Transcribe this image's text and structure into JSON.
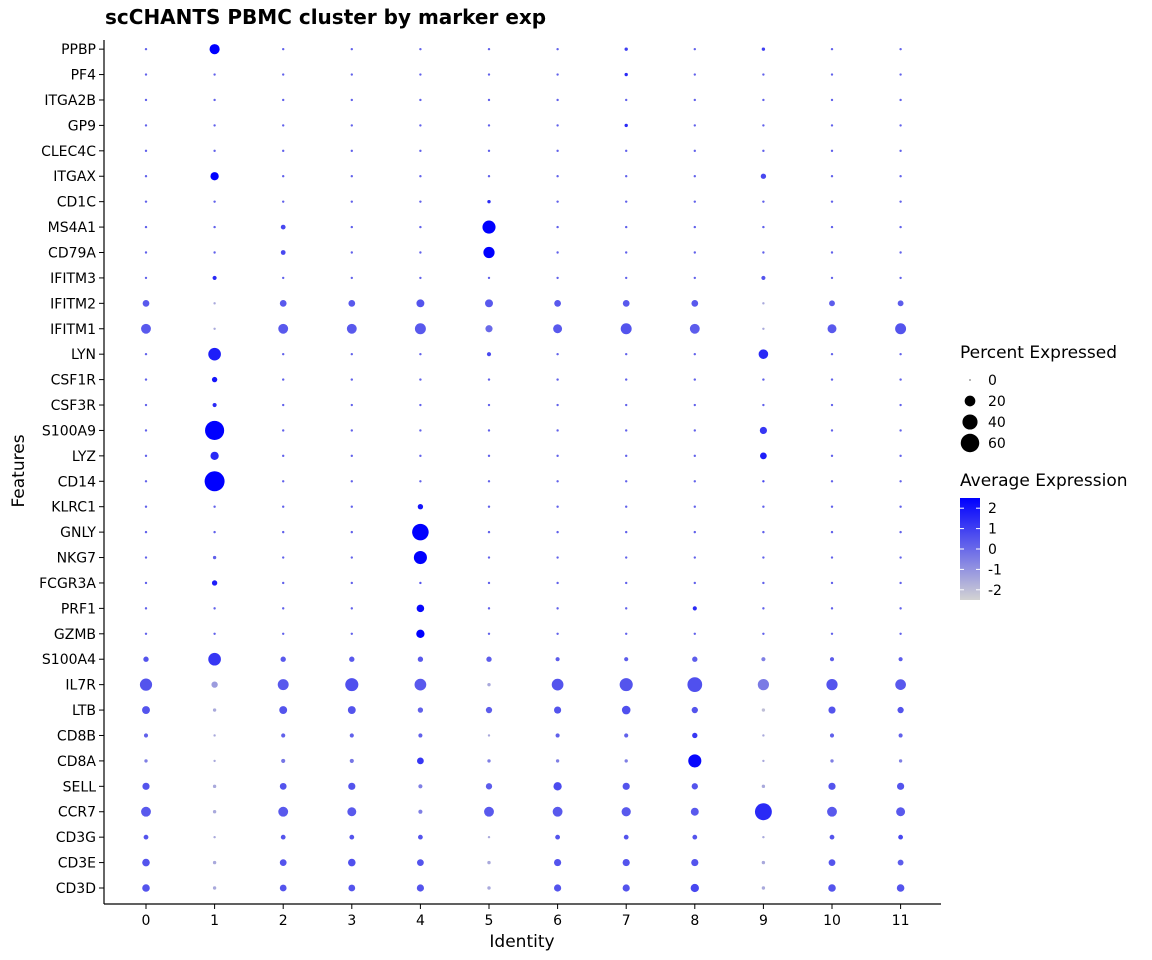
{
  "chart_data": {
    "type": "dotplot",
    "title": "scCHANTS PBMC cluster by marker exp",
    "xlabel": "Identity",
    "ylabel": "Features",
    "categories": [
      "0",
      "1",
      "2",
      "3",
      "4",
      "5",
      "6",
      "7",
      "8",
      "9",
      "10",
      "11"
    ],
    "features": [
      "CD3D",
      "CD3E",
      "CD3G",
      "CCR7",
      "SELL",
      "CD8A",
      "CD8B",
      "LTB",
      "IL7R",
      "S100A4",
      "GZMB",
      "PRF1",
      "FCGR3A",
      "NKG7",
      "GNLY",
      "KLRC1",
      "CD14",
      "LYZ",
      "S100A9",
      "CSF3R",
      "CSF1R",
      "LYN",
      "IFITM1",
      "IFITM2",
      "IFITM3",
      "CD79A",
      "MS4A1",
      "CD1C",
      "ITGAX",
      "CLEC4C",
      "GP9",
      "ITGA2B",
      "PF4",
      "PPBP"
    ],
    "size_legend": {
      "title": "Percent Expressed",
      "breaks": [
        0,
        20,
        40,
        60
      ]
    },
    "color_legend": {
      "title": "Average Expression",
      "breaks": [
        2,
        1,
        0,
        -1,
        -2
      ],
      "low_color": "#d3d3d3",
      "high_color": "#0000ff",
      "range": [
        -2.5,
        2.5
      ]
    },
    "pct_max": 70,
    "grid": false,
    "legend_position": "right",
    "points": [
      {
        "feature": "CD3D",
        "pct": [
          10,
          2,
          8,
          8,
          9,
          2,
          9,
          9,
          12,
          2,
          10,
          10
        ],
        "avg": [
          0.5,
          -1.5,
          0.5,
          0.5,
          0.5,
          -1.5,
          0.5,
          0.5,
          0.8,
          -1.5,
          0.5,
          0.5
        ]
      },
      {
        "feature": "CD3E",
        "pct": [
          10,
          2,
          8,
          10,
          8,
          2,
          9,
          9,
          9,
          2,
          8,
          6
        ],
        "avg": [
          0.5,
          -1.5,
          0.5,
          0.6,
          0.5,
          -1.5,
          0.5,
          0.5,
          0.5,
          -1.5,
          0.5,
          0.3
        ]
      },
      {
        "feature": "CD3G",
        "pct": [
          4,
          1,
          4,
          4,
          4,
          1,
          4,
          4,
          4,
          1,
          4,
          4
        ],
        "avg": [
          0.5,
          -1.5,
          0.5,
          0.5,
          0.5,
          -1.5,
          0.5,
          0.5,
          0.5,
          -1.5,
          0.5,
          0.8
        ]
      },
      {
        "feature": "CCR7",
        "pct": [
          17,
          2,
          17,
          14,
          3,
          17,
          17,
          15,
          11,
          50,
          17,
          14
        ],
        "avg": [
          0.4,
          -1.5,
          0.4,
          0.4,
          -0.5,
          0.4,
          0.4,
          0.4,
          0.4,
          1.5,
          0.4,
          0.4
        ]
      },
      {
        "feature": "SELL",
        "pct": [
          9,
          2,
          8,
          9,
          3,
          7,
          12,
          9,
          7,
          2,
          9,
          9
        ],
        "avg": [
          0.5,
          -1.5,
          0.5,
          0.5,
          -0.5,
          0.3,
          0.7,
          0.5,
          0.5,
          -1.5,
          0.5,
          0.5
        ]
      },
      {
        "feature": "CD8A",
        "pct": [
          2,
          1,
          3,
          3,
          8,
          2,
          2,
          2,
          30,
          1,
          2,
          2
        ],
        "avg": [
          -0.5,
          -1.5,
          -0.3,
          -0.3,
          1.2,
          -0.5,
          -0.5,
          -0.5,
          2.3,
          -1.5,
          -0.5,
          -0.5
        ]
      },
      {
        "feature": "CD8B",
        "pct": [
          3,
          1,
          3,
          3,
          3,
          1,
          3,
          3,
          5,
          1,
          3,
          3
        ],
        "avg": [
          0.2,
          -1.5,
          0.2,
          0.2,
          0.2,
          -1.5,
          0.2,
          0.2,
          1.2,
          -1.5,
          0.2,
          0.2
        ]
      },
      {
        "feature": "LTB",
        "pct": [
          11,
          2,
          11,
          11,
          5,
          7,
          9,
          13,
          7,
          2,
          9,
          7
        ],
        "avg": [
          0.5,
          -1.5,
          0.5,
          0.5,
          0.2,
          0.3,
          0.5,
          0.6,
          0.5,
          -2,
          0.5,
          0.5
        ]
      },
      {
        "feature": "IL7R",
        "pct": [
          26,
          7,
          21,
          30,
          24,
          2,
          24,
          30,
          38,
          22,
          22,
          20
        ],
        "avg": [
          0.5,
          -1.2,
          0.4,
          0.6,
          0.4,
          -1.5,
          0.5,
          0.5,
          0.6,
          -0.4,
          0.5,
          0.4
        ]
      },
      {
        "feature": "S100A4",
        "pct": [
          5,
          28,
          5,
          5,
          5,
          5,
          3,
          3,
          5,
          3,
          3,
          3
        ],
        "avg": [
          0.5,
          1.2,
          0.4,
          0.4,
          0.4,
          0.3,
          0.3,
          0.3,
          0.3,
          -0.5,
          0.3,
          0.3
        ]
      },
      {
        "feature": "GZMB",
        "pct": [
          1,
          1,
          1,
          1,
          12,
          1,
          1,
          1,
          1,
          1,
          1,
          1
        ],
        "avg": [
          0.2,
          0.2,
          0.2,
          0.2,
          2.5,
          0.2,
          0.2,
          0.2,
          0.2,
          0.2,
          0.2,
          0.2
        ]
      },
      {
        "feature": "PRF1",
        "pct": [
          1,
          1,
          1,
          1,
          10,
          1,
          1,
          1,
          3,
          1,
          1,
          1
        ],
        "avg": [
          0.2,
          0.2,
          0.2,
          0.2,
          2.3,
          0.2,
          0.2,
          0.2,
          1.5,
          0.2,
          0.2,
          0.2
        ]
      },
      {
        "feature": "FCGR3A",
        "pct": [
          1,
          5,
          1,
          1,
          1,
          1,
          1,
          1,
          1,
          1,
          1,
          1
        ],
        "avg": [
          0.2,
          1.8,
          0.2,
          0.2,
          0.5,
          0.2,
          0.2,
          0.2,
          0.2,
          0.2,
          0.2,
          0.2
        ]
      },
      {
        "feature": "NKG7",
        "pct": [
          1,
          2,
          1,
          1,
          30,
          1,
          1,
          1,
          1,
          1,
          1,
          1
        ],
        "avg": [
          0.2,
          0.2,
          0.2,
          0.2,
          2.5,
          0.2,
          0.2,
          0.2,
          0.2,
          0.2,
          0.2,
          0.2
        ]
      },
      {
        "feature": "GNLY",
        "pct": [
          1,
          1,
          1,
          1,
          48,
          1,
          1,
          1,
          1,
          1,
          1,
          1
        ],
        "avg": [
          0.2,
          0.2,
          0.2,
          0.2,
          2.5,
          0.2,
          0.2,
          0.2,
          0.2,
          0.2,
          0.2,
          0.2
        ]
      },
      {
        "feature": "KLRC1",
        "pct": [
          1,
          1,
          1,
          1,
          5,
          1,
          1,
          1,
          1,
          1,
          1,
          1
        ],
        "avg": [
          0.2,
          0.2,
          0.2,
          0.2,
          2,
          0.2,
          0.2,
          0.2,
          0.2,
          0.2,
          0.2,
          0.2
        ]
      },
      {
        "feature": "CD14",
        "pct": [
          1,
          70,
          1,
          1,
          1,
          1,
          1,
          1,
          1,
          1,
          1,
          1
        ],
        "avg": [
          0.2,
          2.5,
          0.2,
          0.2,
          0.2,
          0.2,
          0.2,
          0.2,
          0.2,
          0.8,
          0.2,
          0.2
        ]
      },
      {
        "feature": "LYZ",
        "pct": [
          1,
          12,
          1,
          1,
          1,
          1,
          1,
          1,
          1,
          8,
          1,
          1
        ],
        "avg": [
          0.2,
          1.5,
          0.2,
          0.2,
          0.2,
          0.2,
          0.2,
          0.2,
          0.2,
          1.8,
          0.2,
          0.2
        ]
      },
      {
        "feature": "S100A9",
        "pct": [
          1,
          64,
          1,
          1,
          1,
          1,
          1,
          1,
          1,
          9,
          1,
          1
        ],
        "avg": [
          0.2,
          2.5,
          0.2,
          0.2,
          0.2,
          0.2,
          0.2,
          0.2,
          0.2,
          1.2,
          0.2,
          0.2
        ]
      },
      {
        "feature": "CSF3R",
        "pct": [
          1,
          3,
          1,
          1,
          1,
          1,
          1,
          1,
          1,
          1,
          1,
          1
        ],
        "avg": [
          0.2,
          1.5,
          0.2,
          0.2,
          0.2,
          0.2,
          0.2,
          0.2,
          0.2,
          0.2,
          0.2,
          0.2
        ]
      },
      {
        "feature": "CSF1R",
        "pct": [
          1,
          5,
          1,
          1,
          1,
          1,
          1,
          1,
          1,
          1,
          1,
          1
        ],
        "avg": [
          0.2,
          2,
          0.2,
          0.2,
          0.2,
          0.2,
          0.2,
          0.2,
          0.2,
          0.2,
          0.2,
          0.2
        ]
      },
      {
        "feature": "LYN",
        "pct": [
          1,
          28,
          1,
          1,
          1,
          3,
          1,
          1,
          1,
          16,
          1,
          1
        ],
        "avg": [
          0.2,
          1.8,
          0.2,
          0.2,
          0.2,
          0.8,
          0.2,
          0.2,
          0.2,
          1.5,
          0.2,
          0.2
        ]
      },
      {
        "feature": "IFITM1",
        "pct": [
          17,
          1,
          17,
          17,
          21,
          9,
          14,
          21,
          17,
          1,
          14,
          21
        ],
        "avg": [
          0.4,
          -1.5,
          0.4,
          0.4,
          0.4,
          0,
          0.4,
          0.5,
          0.3,
          -1.5,
          0.4,
          0.5
        ]
      },
      {
        "feature": "IFITM2",
        "pct": [
          8,
          1,
          8,
          8,
          11,
          11,
          8,
          8,
          8,
          1,
          6,
          6
        ],
        "avg": [
          0.4,
          -1.5,
          0.4,
          0.4,
          0.5,
          0.4,
          0.4,
          0.4,
          0.4,
          -1.5,
          0.3,
          0.3
        ]
      },
      {
        "feature": "IFITM3",
        "pct": [
          1,
          3,
          1,
          1,
          1,
          1,
          1,
          1,
          1,
          3,
          1,
          1
        ],
        "avg": [
          0.2,
          1.5,
          0.2,
          0.2,
          0.2,
          0.2,
          0.2,
          0.2,
          0.2,
          0.5,
          0.2,
          0.2
        ]
      },
      {
        "feature": "CD79A",
        "pct": [
          1,
          1,
          4,
          1,
          1,
          22,
          1,
          1,
          1,
          1,
          1,
          1
        ],
        "avg": [
          0.2,
          0.2,
          0.8,
          0.2,
          0.2,
          2.5,
          0.2,
          0.2,
          0.2,
          0.2,
          0.2,
          0.2
        ]
      },
      {
        "feature": "MS4A1",
        "pct": [
          1,
          1,
          4,
          1,
          1,
          30,
          1,
          1,
          1,
          1,
          1,
          1
        ],
        "avg": [
          0.2,
          0.2,
          0.8,
          0.2,
          0.2,
          2.5,
          0.2,
          0.2,
          0.2,
          0.2,
          0.2,
          0.2
        ]
      },
      {
        "feature": "CD1C",
        "pct": [
          1,
          1,
          1,
          1,
          1,
          2,
          1,
          1,
          1,
          1,
          1,
          1
        ],
        "avg": [
          0.2,
          0.2,
          0.2,
          0.2,
          0.2,
          1.5,
          0.2,
          0.2,
          0.2,
          0.2,
          0.2,
          0.2
        ]
      },
      {
        "feature": "ITGAX",
        "pct": [
          1,
          12,
          1,
          1,
          1,
          1,
          1,
          1,
          1,
          5,
          1,
          1
        ],
        "avg": [
          0.2,
          2.5,
          0.2,
          0.2,
          0.2,
          0.2,
          0.2,
          0.2,
          0.2,
          0.8,
          0.2,
          0.2
        ]
      },
      {
        "feature": "CLEC4C",
        "pct": [
          1,
          1,
          1,
          1,
          1,
          1,
          1,
          1,
          1,
          1,
          1,
          1
        ],
        "avg": [
          0.2,
          0.2,
          0.2,
          0.2,
          0.2,
          0.2,
          0.2,
          0.2,
          0.2,
          0.2,
          0.2,
          0.2
        ]
      },
      {
        "feature": "GP9",
        "pct": [
          1,
          1,
          1,
          1,
          1,
          1,
          1,
          2,
          1,
          1,
          1,
          1
        ],
        "avg": [
          0.2,
          0.2,
          0.2,
          0.2,
          0.2,
          0.2,
          0.2,
          1.5,
          0.2,
          0.2,
          0.2,
          0.2
        ]
      },
      {
        "feature": "ITGA2B",
        "pct": [
          1,
          1,
          1,
          1,
          1,
          1,
          1,
          1,
          1,
          1,
          1,
          1
        ],
        "avg": [
          0.2,
          0.2,
          0.2,
          0.2,
          0.2,
          0.2,
          0.2,
          0.2,
          0.2,
          0.2,
          0.2,
          0.2
        ]
      },
      {
        "feature": "PF4",
        "pct": [
          1,
          1,
          1,
          1,
          1,
          1,
          1,
          2,
          1,
          1,
          1,
          1
        ],
        "avg": [
          0.2,
          0.2,
          0.2,
          0.2,
          0.2,
          0.2,
          0.2,
          1.5,
          0.2,
          0.2,
          0.2,
          0.2
        ]
      },
      {
        "feature": "PPBP",
        "pct": [
          1,
          18,
          1,
          1,
          1,
          1,
          1,
          2,
          1,
          2,
          1,
          1
        ],
        "avg": [
          0.2,
          2.5,
          0.2,
          0.2,
          0.2,
          0.2,
          0.2,
          1,
          0.2,
          1,
          0.2,
          0.2
        ]
      }
    ]
  }
}
